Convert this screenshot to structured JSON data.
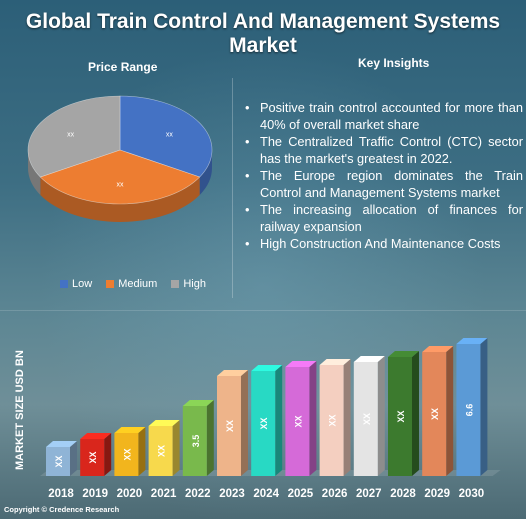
{
  "title": "Global Train Control And Management Systems Market",
  "price_range_heading": "Price Range",
  "key_insights_heading": "Key Insights",
  "insights": [
    "Positive train control accounted for more than 40% of overall market share",
    "The Centralized Traffic Control (CTC) sector has the market's greatest in 2022.",
    "The Europe region dominates the Train Control and Management Systems market",
    "The increasing allocation of finances for railway expansion",
    "High Construction And Maintenance Costs"
  ],
  "bullet_char": "•",
  "copyright": "Copyright © Credence Research",
  "chart_data": [
    {
      "type": "pie",
      "title": "Price Range",
      "categories": [
        "Low",
        "Medium",
        "High"
      ],
      "labels": [
        "xx",
        "xx",
        "xx"
      ],
      "values": [
        33.3,
        33.3,
        33.3
      ],
      "colors": [
        "#4472c4",
        "#ed7d31",
        "#a5a5a5"
      ],
      "legend": "bottom"
    },
    {
      "type": "bar",
      "ylabel": "MARKET SIZE USD BN",
      "categories": [
        "2018",
        "2019",
        "2020",
        "2021",
        "2022",
        "2023",
        "2024",
        "2025",
        "2026",
        "2027",
        "2028",
        "2029",
        "2030"
      ],
      "labels": [
        "XX",
        "XX",
        "XX",
        "XX",
        "3.5",
        "XX",
        "XX",
        "XX",
        "XX",
        "XX",
        "XX",
        "XX",
        "6.6"
      ],
      "values": [
        1.45,
        1.85,
        2.15,
        2.5,
        3.5,
        5.0,
        5.25,
        5.45,
        5.55,
        5.7,
        5.95,
        6.2,
        6.6
      ],
      "colors": [
        "#8fb4d6",
        "#d9261c",
        "#f2b51d",
        "#f7d94c",
        "#79b94c",
        "#eeb48a",
        "#28d9c4",
        "#d56ad8",
        "#f4cfc0",
        "#e4e4e4",
        "#3c7a2e",
        "#e3875a",
        "#5b9ad6"
      ],
      "ylim": [
        0,
        7
      ]
    }
  ]
}
